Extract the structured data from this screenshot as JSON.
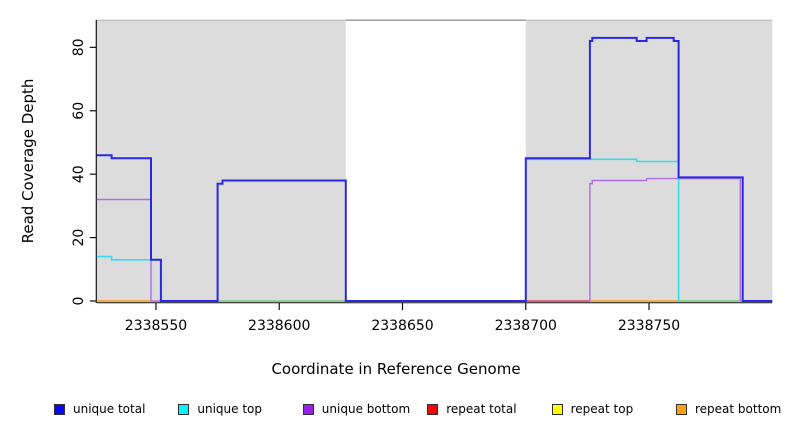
{
  "chart_data": {
    "type": "line",
    "title": "",
    "xlabel": "Coordinate in Reference Genome",
    "ylabel": "Read Coverage Depth",
    "xlim": [
      2338526,
      2338800
    ],
    "ylim": [
      0,
      88
    ],
    "x_ticks": [
      2338550,
      2338600,
      2338650,
      2338700,
      2338750
    ],
    "y_ticks": [
      0,
      20,
      40,
      60,
      80
    ],
    "grid": false,
    "legend_position": "bottom",
    "shade_color": "#dcdcdc",
    "shaded_regions": [
      {
        "from": 2338526,
        "to": 2338627
      },
      {
        "from": 2338700,
        "to": 2338800
      }
    ],
    "gap_top_line": {
      "from": 2338627,
      "to": 2338700,
      "color": "#999999"
    },
    "series": [
      {
        "name": "uncategorized-green-baseline",
        "color": "#7cc87c",
        "width": 1.6,
        "parts": [
          [
            [
              2338575,
              0
            ],
            [
              2338627,
              0
            ]
          ],
          [
            [
              2338762,
              0
            ],
            [
              2338788,
              0
            ]
          ]
        ]
      },
      {
        "name": "repeat total",
        "color": "#d94060",
        "width": 1.5,
        "parts": [
          [
            [
              2338700,
              0
            ],
            [
              2338726,
              0
            ]
          ]
        ]
      },
      {
        "name": "repeat top",
        "color": "#ffe800",
        "width": 1.5,
        "parts": []
      },
      {
        "name": "repeat bottom",
        "color": "#ff9c1a",
        "width": 1.6,
        "parts": [
          [
            [
              2338526,
              0
            ],
            [
              2338548,
              0
            ]
          ],
          [
            [
              2338726,
              0
            ],
            [
              2338762,
              0
            ]
          ]
        ]
      },
      {
        "name": "unique bottom",
        "color": "#b06fe0",
        "width": 1.4,
        "parts": [
          [
            [
              2338526,
              32
            ],
            [
              2338548,
              32
            ],
            [
              2338548,
              0
            ],
            [
              2338552,
              0
            ]
          ],
          [
            [
              2338726,
              0
            ],
            [
              2338726,
              37
            ],
            [
              2338727,
              37
            ],
            [
              2338727,
              38
            ],
            [
              2338749,
              38
            ],
            [
              2338749,
              38.6
            ],
            [
              2338787,
              38.6
            ],
            [
              2338787,
              0
            ]
          ]
        ]
      },
      {
        "name": "unique top",
        "color": "#35dcec",
        "width": 1.6,
        "parts": [
          [
            [
              2338526,
              14
            ],
            [
              2338532,
              14
            ],
            [
              2338532,
              13
            ],
            [
              2338552,
              13
            ],
            [
              2338552,
              0
            ]
          ],
          [
            [
              2338700,
              44.7
            ],
            [
              2338745,
              44.7
            ],
            [
              2338745,
              44
            ],
            [
              2338762,
              44
            ],
            [
              2338762,
              0
            ]
          ]
        ]
      },
      {
        "name": "unique total",
        "color": "#2828e8",
        "width": 2,
        "parts": [
          [
            [
              2338526,
              46
            ],
            [
              2338532,
              46
            ],
            [
              2338532,
              45
            ],
            [
              2338548,
              45
            ],
            [
              2338548,
              13
            ],
            [
              2338552,
              13
            ],
            [
              2338552,
              0
            ],
            [
              2338575,
              0
            ],
            [
              2338575,
              37
            ],
            [
              2338577,
              37
            ],
            [
              2338577,
              38
            ],
            [
              2338627,
              38
            ],
            [
              2338627,
              0
            ],
            [
              2338700,
              0
            ],
            [
              2338700,
              45
            ],
            [
              2338726,
              45
            ],
            [
              2338726,
              82
            ],
            [
              2338727,
              82
            ],
            [
              2338727,
              83
            ],
            [
              2338745,
              83
            ],
            [
              2338745,
              82
            ],
            [
              2338749,
              82
            ],
            [
              2338749,
              83
            ],
            [
              2338760,
              83
            ],
            [
              2338760,
              82
            ],
            [
              2338762,
              82
            ],
            [
              2338762,
              39
            ],
            [
              2338788,
              39
            ],
            [
              2338788,
              0
            ],
            [
              2338800,
              0
            ]
          ]
        ]
      }
    ]
  },
  "legend": {
    "items": [
      {
        "label": "unique total",
        "color": "#0808ee"
      },
      {
        "label": "unique top",
        "color": "#00f5ff"
      },
      {
        "label": "unique bottom",
        "color": "#9820e8"
      },
      {
        "label": "repeat total",
        "color": "#ee0808"
      },
      {
        "label": "repeat top",
        "color": "#ffff00"
      },
      {
        "label": "repeat bottom",
        "color": "#ffa010"
      }
    ]
  }
}
